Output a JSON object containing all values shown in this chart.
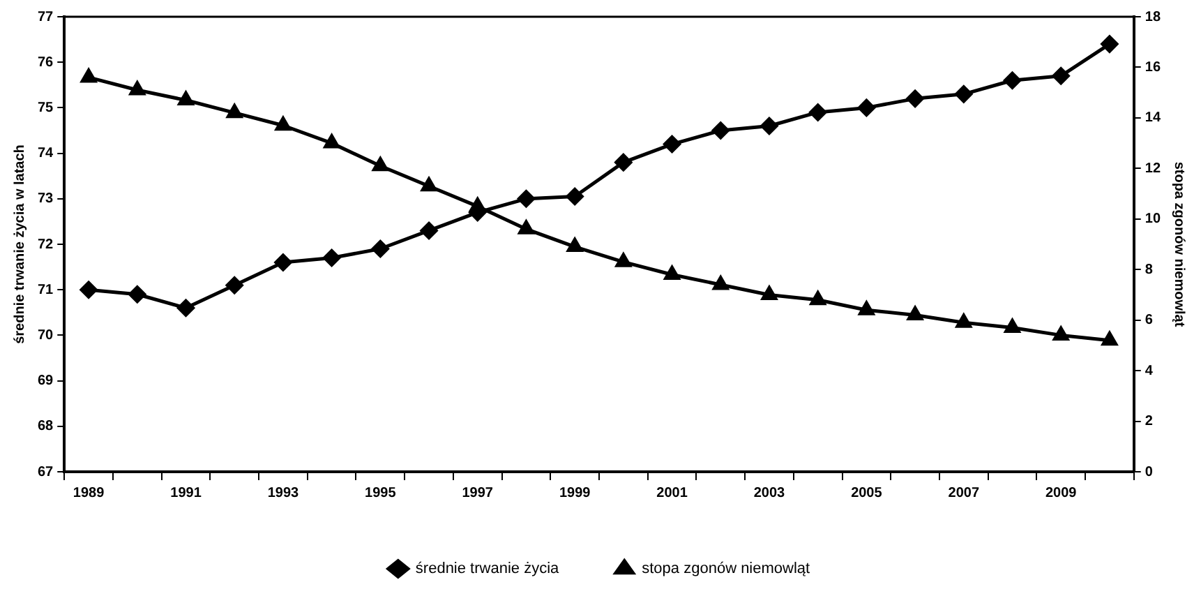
{
  "chart_data": {
    "type": "line",
    "ylabel": "średnie trwanie życia w latach",
    "y2label": "stopa zgonów niemowląt",
    "categories": [
      "1989",
      null,
      "1991",
      null,
      "1993",
      null,
      "1995",
      null,
      "1997",
      null,
      "1999",
      null,
      "2001",
      null,
      "2003",
      null,
      "2005",
      null,
      "2007",
      null,
      "2009",
      null
    ],
    "series": [
      {
        "name": "średnie trwanie życia",
        "color": "#000000",
        "marker": "diamond",
        "values": [
          71.0,
          70.9,
          70.6,
          71.1,
          71.6,
          71.7,
          71.9,
          72.3,
          72.7,
          73.0,
          73.05,
          73.8,
          74.2,
          74.5,
          74.6,
          74.9,
          75.0,
          75.2,
          75.3,
          75.6,
          75.7,
          76.4
        ]
      },
      {
        "name": "stopa zgonów niemowląt",
        "color": "#000000",
        "marker": "triangle",
        "axis": "y2",
        "values": [
          15.6,
          15.1,
          14.7,
          14.2,
          13.7,
          13.0,
          12.1,
          11.3,
          10.5,
          9.6,
          8.9,
          8.3,
          7.8,
          7.4,
          7.0,
          6.8,
          6.4,
          6.2,
          5.9,
          5.7,
          5.4,
          5.2
        ]
      }
    ],
    "ylim": [
      67,
      77
    ],
    "yticks": [
      67,
      68,
      69,
      70,
      71,
      72,
      73,
      74,
      75,
      76,
      77
    ],
    "y2lim": [
      0,
      18
    ],
    "y2ticks": [
      0,
      2,
      4,
      6,
      8,
      10,
      12,
      14,
      16,
      18
    ],
    "grid": false,
    "legend": "bottom",
    "line_style": "solid"
  }
}
